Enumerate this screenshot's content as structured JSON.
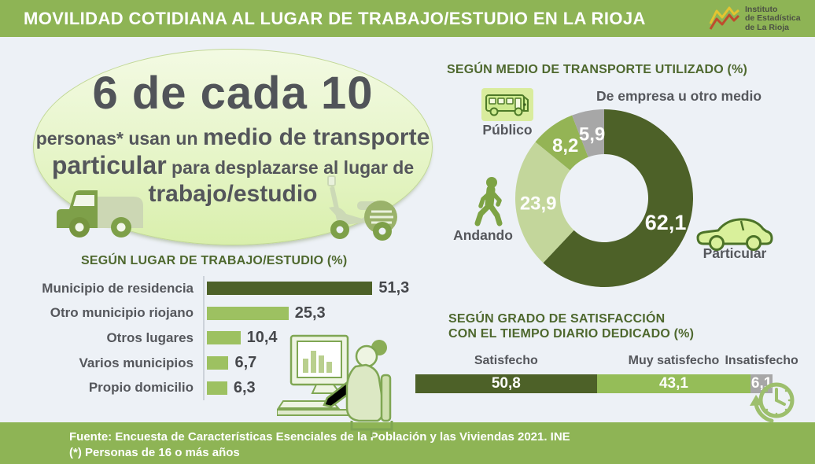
{
  "header": {
    "title": "MOVILIDAD COTIDIANA AL LUGAR DE TRABAJO/ESTUDIO EN LA RIOJA",
    "logo": {
      "line1": "Instituto",
      "line2": "de Estadística",
      "line3": "de La Rioja"
    }
  },
  "hero": {
    "headline": "6 de cada 10",
    "line2_normal": "personas* usan un ",
    "line2_big": "medio de transporte",
    "line3_big": "particular",
    "line3_normal": " para desplazarse al lugar de",
    "line4_big": "trabajo/estudio"
  },
  "colors": {
    "band_green": "#8eb455",
    "dark_olive": "#4d6128",
    "medium_green": "#94b455",
    "bar_green": "#9dc161",
    "pale_green": "#c3d69b",
    "gray": "#a7a7a7",
    "section_title_green": "#4e682e",
    "text_dark_gray": "#55575c",
    "background": "#edf1f6"
  },
  "chart_data": [
    {
      "id": "medio_transporte",
      "type": "pie",
      "donut": true,
      "title": "SEGÚN MEDIO DE TRANSPORTE UTILIZADO (%)",
      "start_angle_deg": 0,
      "direction": "clockwise",
      "segments": [
        {
          "label": "Particular",
          "value": 62.1,
          "display": "62,1",
          "color": "#4d6128",
          "icon": "car-icon"
        },
        {
          "label": "Andando",
          "value": 23.9,
          "display": "23,9",
          "color": "#c3d69b",
          "icon": "pedestrian-icon"
        },
        {
          "label": "Público",
          "value": 8.2,
          "display": "8,2",
          "color": "#94b455",
          "icon": "bus-icon"
        },
        {
          "label": "De empresa u otro medio",
          "value": 5.9,
          "display": "5,9",
          "color": "#a7a7a7",
          "icon": null
        }
      ]
    },
    {
      "id": "lugar_trabajo",
      "type": "bar",
      "title": "SEGÚN LUGAR DE TRABAJO/ESTUDIO (%)",
      "categories": [
        "Municipio de residencia",
        "Otro municipio riojano",
        "Otros lugares",
        "Varios municipios",
        "Propio domicilio"
      ],
      "values": [
        51.3,
        25.3,
        10.4,
        6.7,
        6.3
      ],
      "display_values": [
        "51,3",
        "25,3",
        "10,4",
        "6,7",
        "6,3"
      ],
      "bar_colors": [
        "#4d6128",
        "#9dc161",
        "#9dc161",
        "#9dc161",
        "#9dc161"
      ],
      "xlim": [
        0,
        55
      ]
    },
    {
      "id": "satisfaccion",
      "type": "bar",
      "stacked": true,
      "title_line1": "SEGÚN GRADO DE SATISFACCIÓN",
      "title_line2": "CON EL TIEMPO DIARIO DEDICADO (%)",
      "segments": [
        {
          "label": "Satisfecho",
          "value": 50.8,
          "display": "50,8",
          "color": "#4d6128"
        },
        {
          "label": "Muy satisfecho",
          "value": 43.1,
          "display": "43,1",
          "color": "#95bd58"
        },
        {
          "label": "Insatisfecho",
          "value": 6.1,
          "display": "6,1",
          "color": "#a7a7a7"
        }
      ]
    }
  ],
  "footer": {
    "line1": "Fuente: Encuesta de Características Esenciales de la Población y las Viviendas 2021. INE",
    "line2": "(*) Personas de 16 o más años"
  }
}
